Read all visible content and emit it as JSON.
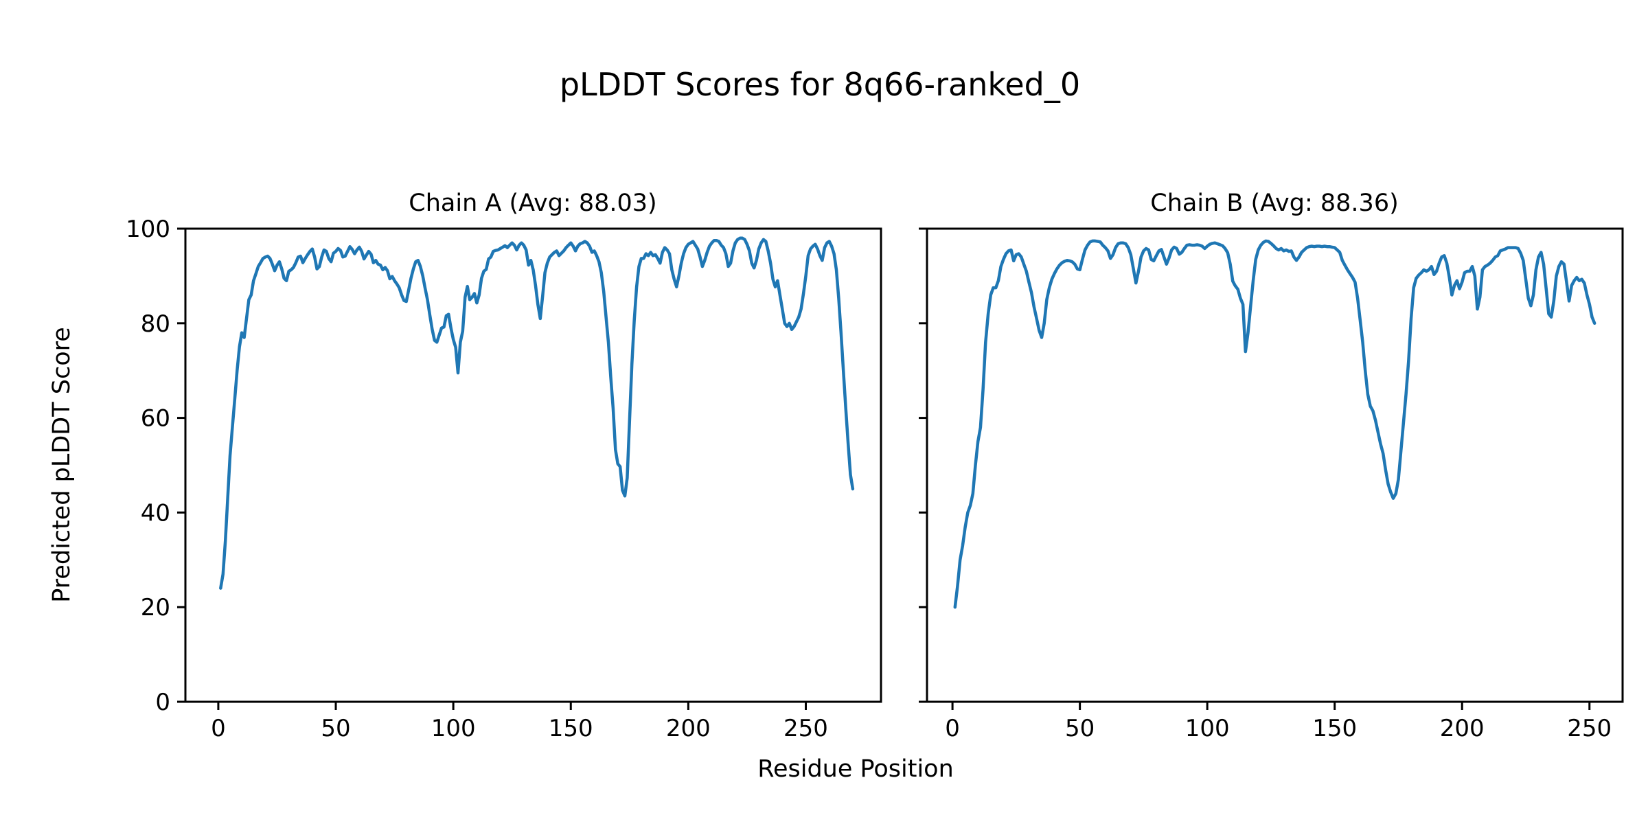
{
  "figure": {
    "title": "pLDDT Scores for 8q66-ranked_0",
    "xlabel": "Residue Position",
    "ylabel": "Predicted pLDDT Score",
    "background": "#ffffff",
    "text_color": "#000000",
    "line_color": "#1f77b4"
  },
  "chart_data": [
    {
      "type": "line",
      "title": "Chain A (Avg: 88.03)",
      "chain": "A",
      "avg_plddt": 88.03,
      "xlabel": "Residue Position",
      "ylabel": "Predicted pLDDT Score",
      "x_ticks": [
        0,
        50,
        100,
        150,
        200,
        250
      ],
      "y_ticks": [
        0,
        20,
        40,
        60,
        80,
        100
      ],
      "xlim": [
        -14,
        282
      ],
      "ylim": [
        0,
        100
      ],
      "grid": false,
      "legend": false,
      "x_start": 1,
      "values": [
        24,
        27,
        34,
        43,
        52,
        58,
        64,
        70,
        75,
        78,
        77,
        81,
        85,
        86,
        89,
        90.5,
        92,
        92.8,
        93.7,
        94,
        94.2,
        93.7,
        92.5,
        91.1,
        92.3,
        93,
        91.5,
        89.5,
        89,
        91,
        91.3,
        91.8,
        92.8,
        94,
        94.2,
        92.8,
        93.7,
        94.5,
        95.2,
        95.7,
        94,
        91.5,
        92,
        94,
        95.5,
        95.2,
        93.7,
        93,
        94.8,
        95.2,
        95.8,
        95.4,
        94,
        94.2,
        95.2,
        96.2,
        95.6,
        94.7,
        95.5,
        96.1,
        95.2,
        93.6,
        94.4,
        95.2,
        94.6,
        92.8,
        93.3,
        92.5,
        92.3,
        91.3,
        91.8,
        91.1,
        89.4,
        89.9,
        89,
        88.3,
        87.5,
        86,
        84.8,
        84.6,
        87,
        89.5,
        91.5,
        93,
        93.3,
        92,
        90,
        87.4,
        85,
        81.8,
        78.8,
        76.4,
        76,
        77.5,
        79,
        79.2,
        81.6,
        81.9,
        79,
        76.6,
        74.9,
        69.5,
        76,
        78.3,
        85.5,
        87.8,
        85,
        85.5,
        86.3,
        84.3,
        86,
        89.5,
        91,
        91.4,
        93.6,
        94,
        95.2,
        95.4,
        95.5,
        95.8,
        96.1,
        96.4,
        96,
        96.5,
        97,
        96.5,
        95.5,
        96.5,
        97,
        96.5,
        95.5,
        92.3,
        93.3,
        91.3,
        88,
        84,
        81,
        85.7,
        90.7,
        92.7,
        94,
        94.5,
        95,
        95.3,
        94.3,
        94.8,
        95.3,
        96,
        96.5,
        97,
        96.3,
        95.3,
        96.3,
        96.8,
        97,
        97.3,
        97,
        96.3,
        95,
        95.3,
        94.3,
        93,
        90.7,
        86.7,
        81.3,
        76,
        68.7,
        62,
        53.3,
        50.3,
        49.7,
        44.7,
        43.5,
        47.3,
        59.3,
        71.3,
        80.7,
        87.7,
        92,
        93.7,
        93.7,
        94.7,
        94.3,
        95,
        94.3,
        94.5,
        93.7,
        92.7,
        95,
        96,
        95.5,
        94.7,
        91.3,
        89.3,
        87.7,
        90,
        92.7,
        94.7,
        96,
        96.7,
        97,
        97.3,
        96.5,
        95.7,
        94,
        92,
        93.3,
        95,
        96.3,
        97,
        97.5,
        97.5,
        97.3,
        96.5,
        96,
        94.7,
        92,
        92.7,
        95.3,
        97,
        97.7,
        98,
        98,
        97.7,
        96.7,
        95.3,
        92.7,
        91.7,
        93.3,
        95.7,
        97,
        97.7,
        97.3,
        95.3,
        92.7,
        89.3,
        87.7,
        89,
        86,
        83,
        80,
        79.3,
        80,
        78.7,
        79.3,
        80.3,
        81.3,
        83,
        86.3,
        90,
        94.3,
        95.7,
        96.3,
        96.7,
        95.7,
        94.3,
        93.3,
        96,
        97,
        97.3,
        96.3,
        94.7,
        91.3,
        85.3,
        78,
        70,
        62,
        54.7,
        48,
        45
      ]
    },
    {
      "type": "line",
      "title": "Chain B (Avg: 88.36)",
      "chain": "B",
      "avg_plddt": 88.36,
      "xlabel": "Residue Position",
      "ylabel": "Predicted pLDDT Score",
      "x_ticks": [
        0,
        50,
        100,
        150,
        200,
        250
      ],
      "y_ticks": [
        0,
        20,
        40,
        60,
        80,
        100
      ],
      "xlim": [
        -10,
        263
      ],
      "ylim": [
        0,
        100
      ],
      "grid": false,
      "legend": false,
      "x_start": 1,
      "values": [
        20,
        24.5,
        30,
        33,
        37,
        40,
        41.5,
        44,
        50,
        55,
        58,
        66,
        76,
        82,
        86,
        87.5,
        87.5,
        89,
        92,
        93.5,
        94.7,
        95.3,
        95.5,
        93.2,
        94.5,
        94.7,
        94,
        92.5,
        91,
        88.7,
        86.5,
        83.5,
        81,
        78.5,
        77,
        80,
        85,
        87.5,
        89.3,
        90.5,
        91.5,
        92.3,
        92.8,
        93.1,
        93.3,
        93.2,
        93,
        92.5,
        91.5,
        91.3,
        93.5,
        95.5,
        96.5,
        97.2,
        97.4,
        97.4,
        97.3,
        97.2,
        96.5,
        96,
        95.3,
        93.7,
        94.5,
        96,
        96.8,
        97,
        97,
        96.8,
        96,
        94.5,
        91.5,
        88.5,
        91,
        94,
        95.3,
        95.8,
        95.5,
        93.5,
        93.2,
        94.3,
        95.3,
        95.6,
        94,
        92.5,
        93.8,
        95.5,
        96.1,
        95.8,
        94.6,
        95,
        95.8,
        96.5,
        96.6,
        96.5,
        96.5,
        96.6,
        96.5,
        96.3,
        95.8,
        96.3,
        96.7,
        96.9,
        97,
        96.8,
        96.6,
        96.4,
        95.8,
        94.9,
        92.5,
        88.9,
        87.9,
        87.2,
        85.3,
        84,
        74,
        78,
        83.5,
        89,
        93.5,
        95.5,
        96.5,
        97.1,
        97.4,
        97.3,
        96.9,
        96.4,
        95.8,
        95.5,
        95.8,
        95.3,
        95.5,
        95.2,
        95.3,
        94,
        93.3,
        94,
        95,
        95.5,
        96,
        96.2,
        96.3,
        96.2,
        96.3,
        96.3,
        96.2,
        96.3,
        96.2,
        96.2,
        96.1,
        96,
        95.5,
        95,
        93.3,
        92.3,
        91.3,
        90.5,
        89.7,
        88.7,
        85.3,
        80.7,
        76,
        70,
        65,
        62.5,
        61.5,
        59.5,
        57,
        54.5,
        52.5,
        49,
        46,
        44.3,
        43,
        44,
        47,
        53,
        59,
        65,
        72,
        81,
        87.5,
        89.5,
        90.2,
        90.7,
        91.3,
        91,
        91.3,
        92,
        90.3,
        91,
        92.7,
        94,
        94.3,
        92.7,
        89.7,
        86,
        88,
        89,
        87.3,
        88.7,
        90.7,
        91,
        91,
        92,
        90,
        83,
        85.5,
        91.3,
        92,
        92.3,
        92.7,
        93.3,
        94,
        94.3,
        95.3,
        95.5,
        95.7,
        96,
        96,
        96,
        96,
        95.8,
        94.8,
        93.3,
        89.3,
        85.3,
        83.7,
        86,
        91.3,
        94,
        95,
        92.5,
        87.3,
        82,
        81.3,
        84.7,
        90,
        92,
        93,
        92.5,
        88.7,
        84.7,
        88,
        89,
        89.7,
        89,
        89.3,
        88.5,
        86,
        84,
        81.3,
        80
      ]
    }
  ]
}
